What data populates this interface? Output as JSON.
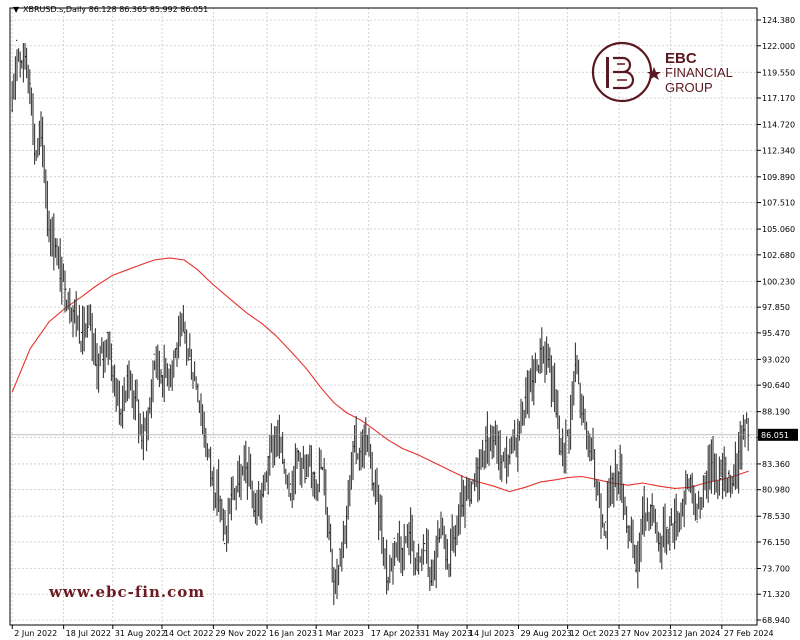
{
  "header": {
    "symbol_line": "XBRUSD.s,Daily  86.128 86.365 85.992 86.051",
    "dropdown_glyph": "▼"
  },
  "brand": {
    "name_line1": "EBC",
    "name_line2": "FINANCIAL",
    "name_line3": "GROUP",
    "logo_icon": "ebc-monogram-icon",
    "color": "#5a1820"
  },
  "watermark": {
    "site": "www.ebc-fin.com"
  },
  "chart_data": {
    "type": "line",
    "title": "",
    "ylim": [
      68.94,
      125.0
    ],
    "y_ticks": [
      "124.380",
      "122.000",
      "119.550",
      "117.170",
      "114.720",
      "112.340",
      "109.890",
      "107.510",
      "105.060",
      "102.680",
      "100.230",
      "97.850",
      "95.470",
      "93.020",
      "90.640",
      "88.190",
      "85.810",
      "83.360",
      "80.980",
      "78.530",
      "76.150",
      "73.700",
      "71.320",
      "68.940"
    ],
    "y_tick_values": [
      124.38,
      122.0,
      119.55,
      117.17,
      114.72,
      112.34,
      109.89,
      107.51,
      105.06,
      102.68,
      100.23,
      97.85,
      95.47,
      93.02,
      90.64,
      88.19,
      85.81,
      83.36,
      80.98,
      78.53,
      76.15,
      73.7,
      71.32,
      68.94
    ],
    "x_ticks": [
      "2 Jun 2022",
      "18 Jul 2022",
      "31 Aug 2022",
      "14 Oct 2022",
      "29 Nov 2022",
      "16 Jan 2023",
      "1 Mar 2023",
      "17 Apr 2023",
      "31 May 2023",
      "14 Jul 2023",
      "29 Aug 2023",
      "12 Oct 2023",
      "27 Nov 2023",
      "12 Jan 2024",
      "27 Feb 2024"
    ],
    "x_tick_dates": [
      "2022-06-02",
      "2022-07-18",
      "2022-08-31",
      "2022-10-14",
      "2022-11-29",
      "2023-01-16",
      "2023-03-01",
      "2023-04-17",
      "2023-05-31",
      "2023-07-14",
      "2023-08-29",
      "2023-10-12",
      "2023-11-27",
      "2024-01-12",
      "2024-02-27"
    ],
    "grid": true,
    "last_price": "86.051",
    "last_price_value": 86.051,
    "series": [
      {
        "kind": "price-bars",
        "color": "#000000",
        "points": [
          [
            "2022-06-02",
            116.0
          ],
          [
            "2022-06-06",
            122.5
          ],
          [
            "2022-06-10",
            120.5
          ],
          [
            "2022-06-14",
            121.0
          ],
          [
            "2022-06-18",
            118.5
          ],
          [
            "2022-06-22",
            112.0
          ],
          [
            "2022-06-28",
            113.5
          ],
          [
            "2022-07-05",
            105.0
          ],
          [
            "2022-07-11",
            103.5
          ],
          [
            "2022-07-15",
            100.5
          ],
          [
            "2022-07-20",
            99.5
          ],
          [
            "2022-07-27",
            97.5
          ],
          [
            "2022-08-03",
            95.5
          ],
          [
            "2022-08-09",
            96.0
          ],
          [
            "2022-08-16",
            92.5
          ],
          [
            "2022-08-22",
            93.0
          ],
          [
            "2022-08-26",
            95.5
          ],
          [
            "2022-08-31",
            91.5
          ],
          [
            "2022-09-07",
            88.0
          ],
          [
            "2022-09-13",
            91.5
          ],
          [
            "2022-09-20",
            89.5
          ],
          [
            "2022-09-26",
            85.5
          ],
          [
            "2022-10-03",
            88.5
          ],
          [
            "2022-10-07",
            93.5
          ],
          [
            "2022-10-14",
            91.5
          ],
          [
            "2022-10-21",
            92.5
          ],
          [
            "2022-10-27",
            94.0
          ],
          [
            "2022-11-03",
            95.5
          ],
          [
            "2022-11-08",
            93.0
          ],
          [
            "2022-11-15",
            90.5
          ],
          [
            "2022-11-21",
            86.0
          ],
          [
            "2022-11-28",
            82.0
          ],
          [
            "2022-12-05",
            80.0
          ],
          [
            "2022-12-09",
            76.0
          ],
          [
            "2022-12-15",
            80.5
          ],
          [
            "2022-12-22",
            81.5
          ],
          [
            "2022-12-29",
            83.0
          ],
          [
            "2023-01-05",
            79.0
          ],
          [
            "2023-01-12",
            80.5
          ],
          [
            "2023-01-18",
            84.0
          ],
          [
            "2023-01-24",
            86.0
          ],
          [
            "2023-01-31",
            83.5
          ],
          [
            "2023-02-06",
            81.5
          ],
          [
            "2023-02-13",
            84.5
          ],
          [
            "2023-02-20",
            82.0
          ],
          [
            "2023-02-27",
            82.5
          ],
          [
            "2023-03-06",
            83.0
          ],
          [
            "2023-03-13",
            77.0
          ],
          [
            "2023-03-17",
            72.5
          ],
          [
            "2023-03-22",
            75.5
          ],
          [
            "2023-03-28",
            78.5
          ],
          [
            "2023-04-04",
            85.0
          ],
          [
            "2023-04-10",
            84.5
          ],
          [
            "2023-04-14",
            86.0
          ],
          [
            "2023-04-21",
            81.5
          ],
          [
            "2023-04-27",
            78.5
          ],
          [
            "2023-05-04",
            72.5
          ],
          [
            "2023-05-10",
            76.5
          ],
          [
            "2023-05-17",
            75.5
          ],
          [
            "2023-05-24",
            77.0
          ],
          [
            "2023-05-31",
            73.5
          ],
          [
            "2023-06-06",
            76.0
          ],
          [
            "2023-06-12",
            72.5
          ],
          [
            "2023-06-19",
            76.5
          ],
          [
            "2023-06-26",
            74.5
          ],
          [
            "2023-07-03",
            76.5
          ],
          [
            "2023-07-10",
            79.5
          ],
          [
            "2023-07-17",
            80.0
          ],
          [
            "2023-07-24",
            83.0
          ],
          [
            "2023-07-31",
            85.5
          ],
          [
            "2023-08-07",
            85.5
          ],
          [
            "2023-08-14",
            83.5
          ],
          [
            "2023-08-21",
            84.0
          ],
          [
            "2023-08-28",
            86.0
          ],
          [
            "2023-09-04",
            89.5
          ],
          [
            "2023-09-11",
            91.0
          ],
          [
            "2023-09-18",
            94.0
          ],
          [
            "2023-09-25",
            93.0
          ],
          [
            "2023-10-02",
            88.0
          ],
          [
            "2023-10-06",
            84.5
          ],
          [
            "2023-10-12",
            86.0
          ],
          [
            "2023-10-19",
            92.5
          ],
          [
            "2023-10-25",
            88.0
          ],
          [
            "2023-11-01",
            84.5
          ],
          [
            "2023-11-08",
            80.5
          ],
          [
            "2023-11-15",
            78.0
          ],
          [
            "2023-11-21",
            82.0
          ],
          [
            "2023-11-28",
            82.5
          ],
          [
            "2023-12-05",
            77.5
          ],
          [
            "2023-12-12",
            73.5
          ],
          [
            "2023-12-18",
            78.5
          ],
          [
            "2023-12-26",
            79.5
          ],
          [
            "2024-01-02",
            76.0
          ],
          [
            "2024-01-09",
            77.5
          ],
          [
            "2024-01-16",
            78.0
          ],
          [
            "2024-01-23",
            80.0
          ],
          [
            "2024-01-30",
            82.0
          ],
          [
            "2024-02-05",
            78.0
          ],
          [
            "2024-02-12",
            82.5
          ],
          [
            "2024-02-19",
            83.5
          ],
          [
            "2024-02-26",
            82.0
          ],
          [
            "2024-03-04",
            82.5
          ],
          [
            "2024-03-08",
            81.5
          ],
          [
            "2024-03-13",
            84.5
          ],
          [
            "2024-03-18",
            86.5
          ],
          [
            "2024-03-22",
            86.0
          ]
        ]
      },
      {
        "kind": "moving-average",
        "color": "#e8312c",
        "points": [
          [
            "2022-06-02",
            90.0
          ],
          [
            "2022-06-18",
            94.0
          ],
          [
            "2022-07-05",
            96.5
          ],
          [
            "2022-07-20",
            97.8
          ],
          [
            "2022-08-03",
            98.8
          ],
          [
            "2022-08-16",
            99.8
          ],
          [
            "2022-08-31",
            100.8
          ],
          [
            "2022-09-13",
            101.3
          ],
          [
            "2022-09-26",
            101.8
          ],
          [
            "2022-10-07",
            102.2
          ],
          [
            "2022-10-21",
            102.4
          ],
          [
            "2022-11-03",
            102.2
          ],
          [
            "2022-11-15",
            101.3
          ],
          [
            "2022-11-28",
            100.0
          ],
          [
            "2022-12-15",
            98.5
          ],
          [
            "2022-12-29",
            97.3
          ],
          [
            "2023-01-12",
            96.3
          ],
          [
            "2023-01-24",
            95.2
          ],
          [
            "2023-02-06",
            93.8
          ],
          [
            "2023-02-20",
            92.2
          ],
          [
            "2023-03-06",
            90.3
          ],
          [
            "2023-03-17",
            89.0
          ],
          [
            "2023-03-28",
            88.1
          ],
          [
            "2023-04-10",
            87.4
          ],
          [
            "2023-04-21",
            86.6
          ],
          [
            "2023-05-04",
            85.6
          ],
          [
            "2023-05-17",
            84.8
          ],
          [
            "2023-05-31",
            84.2
          ],
          [
            "2023-06-12",
            83.6
          ],
          [
            "2023-06-26",
            82.9
          ],
          [
            "2023-07-10",
            82.2
          ],
          [
            "2023-07-24",
            81.7
          ],
          [
            "2023-08-07",
            81.3
          ],
          [
            "2023-08-21",
            80.8
          ],
          [
            "2023-09-04",
            81.2
          ],
          [
            "2023-09-18",
            81.7
          ],
          [
            "2023-10-02",
            81.9
          ],
          [
            "2023-10-12",
            82.1
          ],
          [
            "2023-10-25",
            82.2
          ],
          [
            "2023-11-08",
            81.9
          ],
          [
            "2023-11-21",
            81.6
          ],
          [
            "2023-12-05",
            81.4
          ],
          [
            "2023-12-18",
            81.6
          ],
          [
            "2024-01-02",
            81.3
          ],
          [
            "2024-01-16",
            81.1
          ],
          [
            "2024-01-30",
            81.2
          ],
          [
            "2024-02-12",
            81.6
          ],
          [
            "2024-02-26",
            81.9
          ],
          [
            "2024-03-08",
            82.2
          ],
          [
            "2024-03-22",
            82.7
          ]
        ]
      }
    ]
  }
}
